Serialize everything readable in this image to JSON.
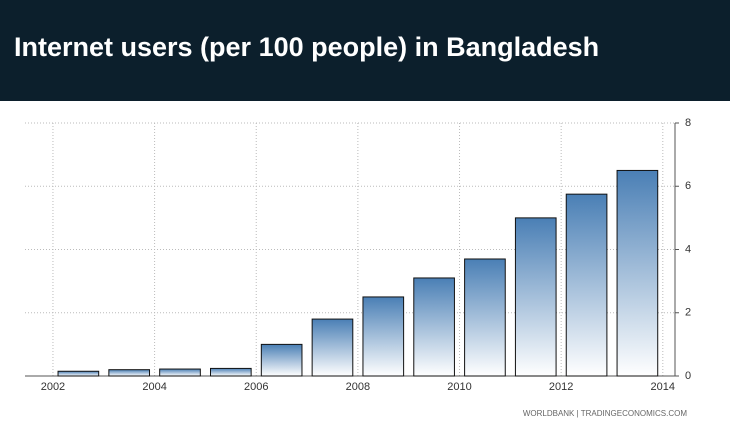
{
  "chart_data": {
    "type": "bar",
    "title": "Internet users (per 100 people) in Bangladesh",
    "source": "WORLDBANK | TRADINGECONOMICS.COM",
    "x": [
      2002,
      2003,
      2004,
      2005,
      2006,
      2007,
      2008,
      2009,
      2010,
      2011,
      2012,
      2013
    ],
    "values": [
      0.15,
      0.2,
      0.22,
      0.24,
      1.0,
      1.8,
      2.5,
      3.1,
      3.7,
      5.0,
      5.75,
      6.5
    ],
    "color": "#4a7fb5",
    "xlim": [
      2001.45,
      2014.24
    ],
    "xticks": [
      2002,
      2004,
      2006,
      2008,
      2010,
      2012,
      2014
    ],
    "ylim": [
      0,
      8
    ],
    "yticks": [
      0,
      2,
      4,
      6,
      8
    ],
    "grid": true
  }
}
